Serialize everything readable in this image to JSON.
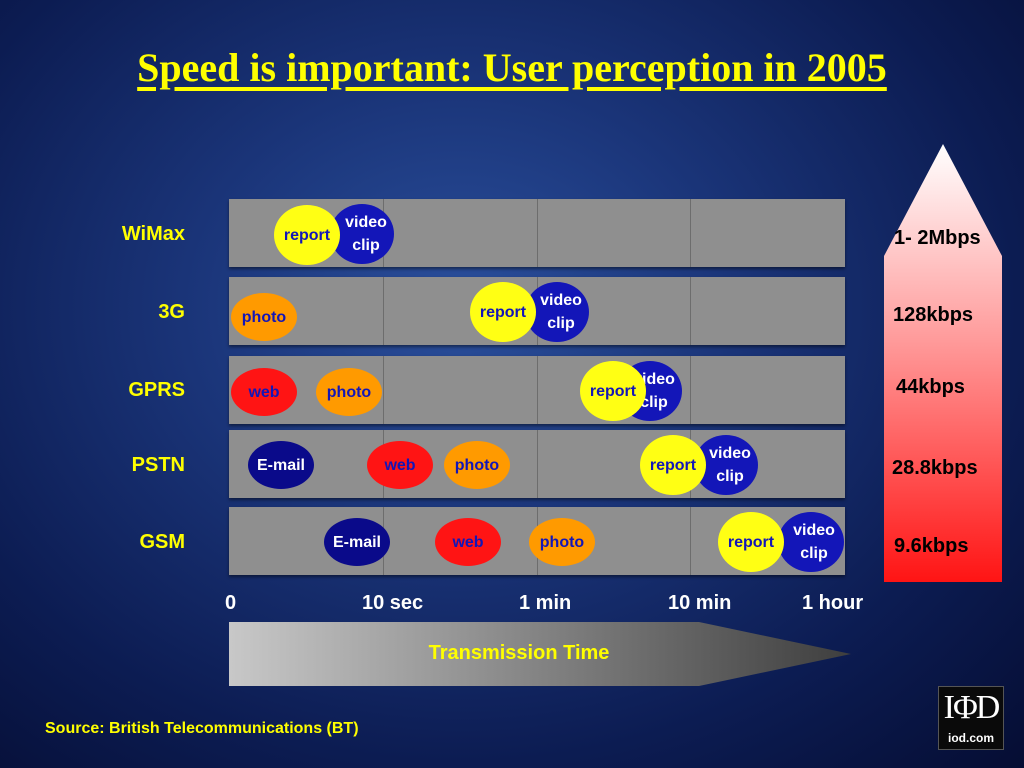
{
  "title": "Speed is important:  User perception in 2005",
  "rows": [
    {
      "label": "WiMax",
      "speed": "1- 2Mbps"
    },
    {
      "label": "3G",
      "speed": "128kbps"
    },
    {
      "label": "GPRS",
      "speed": "44kbps"
    },
    {
      "label": "PSTN",
      "speed": "28.8kbps"
    },
    {
      "label": "GSM",
      "speed": "9.6kbps"
    }
  ],
  "bubbles": {
    "video": "video clip",
    "report": "report",
    "photo": "photo",
    "web": "web",
    "email": "E-mail"
  },
  "time_axis": {
    "ticks": [
      "0",
      "10 sec",
      "1 min",
      "10 min",
      "1 hour"
    ],
    "label": "Transmission Time"
  },
  "source": "Source: British Telecommunications (BT)",
  "logo": {
    "mark": "IΦD",
    "text": "iod.com"
  },
  "colors": {
    "title": "#ffff00",
    "video": "#1316b8",
    "report": "#ffff14",
    "photo": "#ff9a00",
    "web": "#ff1414",
    "email": "#0a0a8a",
    "speed_arrow_top": "#ffffff",
    "speed_arrow_bottom": "#ff1414"
  }
}
